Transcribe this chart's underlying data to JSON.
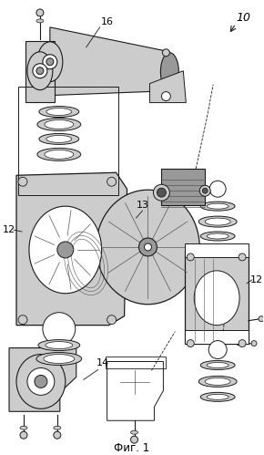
{
  "caption": "Фиг. 1",
  "label_10": "10",
  "label_12": "12",
  "label_13": "13",
  "label_14": "14",
  "label_16": "16",
  "bg_color": "#ffffff",
  "line_color": "#1a1a1a",
  "gray_light": "#cccccc",
  "gray_mid": "#999999",
  "gray_dark": "#555555",
  "figsize": [
    2.9,
    4.99
  ],
  "dpi": 100
}
